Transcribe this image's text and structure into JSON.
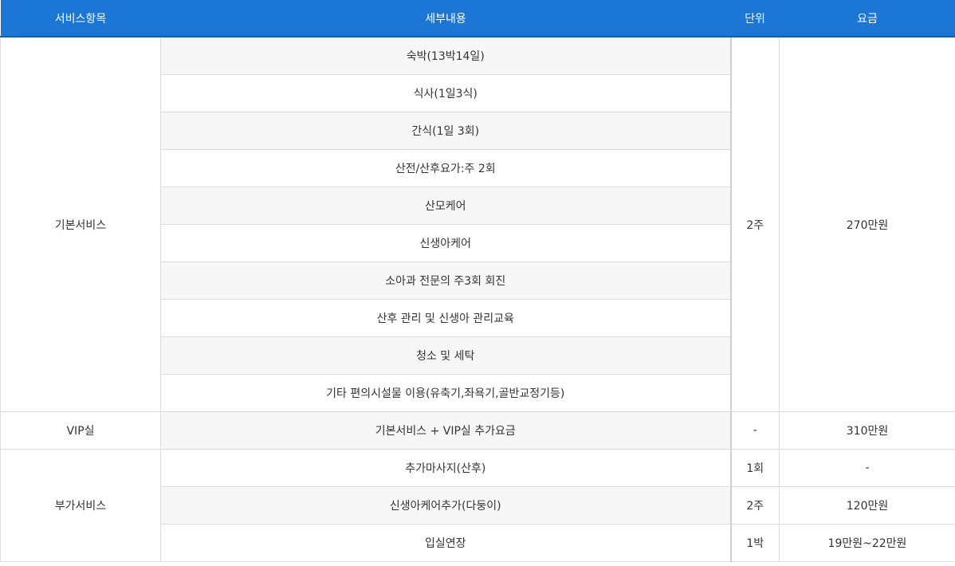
{
  "headers": {
    "item": "서비스항목",
    "detail": "세부내용",
    "unit": "단위",
    "price": "요금"
  },
  "basic": {
    "name": "기본서비스",
    "unit": "2주",
    "price": "270만원",
    "details": [
      "숙박(13박14일)",
      "식사(1일3식)",
      "간식(1일 3회)",
      "산전/산후요가:주 2회",
      "산모케어",
      "신생아케어",
      "소아과 전문의 주3회 회진",
      "산후 관리 및 신생아 관리교육",
      "청소 및 세탁",
      "기타 편의시설물 이용(유축기,좌욕기,골반교정기등)"
    ]
  },
  "vip": {
    "name": "VIP실",
    "detail": "기본서비스 + VIP실 추가요금",
    "unit": "-",
    "price": "310만원"
  },
  "extra": {
    "name": "부가서비스",
    "rows": [
      {
        "detail": "추가마사지(산후)",
        "unit": "1회",
        "price": "-"
      },
      {
        "detail": "신생아케어추가(다둥이)",
        "unit": "2주",
        "price": "120만원"
      },
      {
        "detail": "입실연장",
        "unit": "1박",
        "price": "19만원~22만원"
      }
    ]
  }
}
